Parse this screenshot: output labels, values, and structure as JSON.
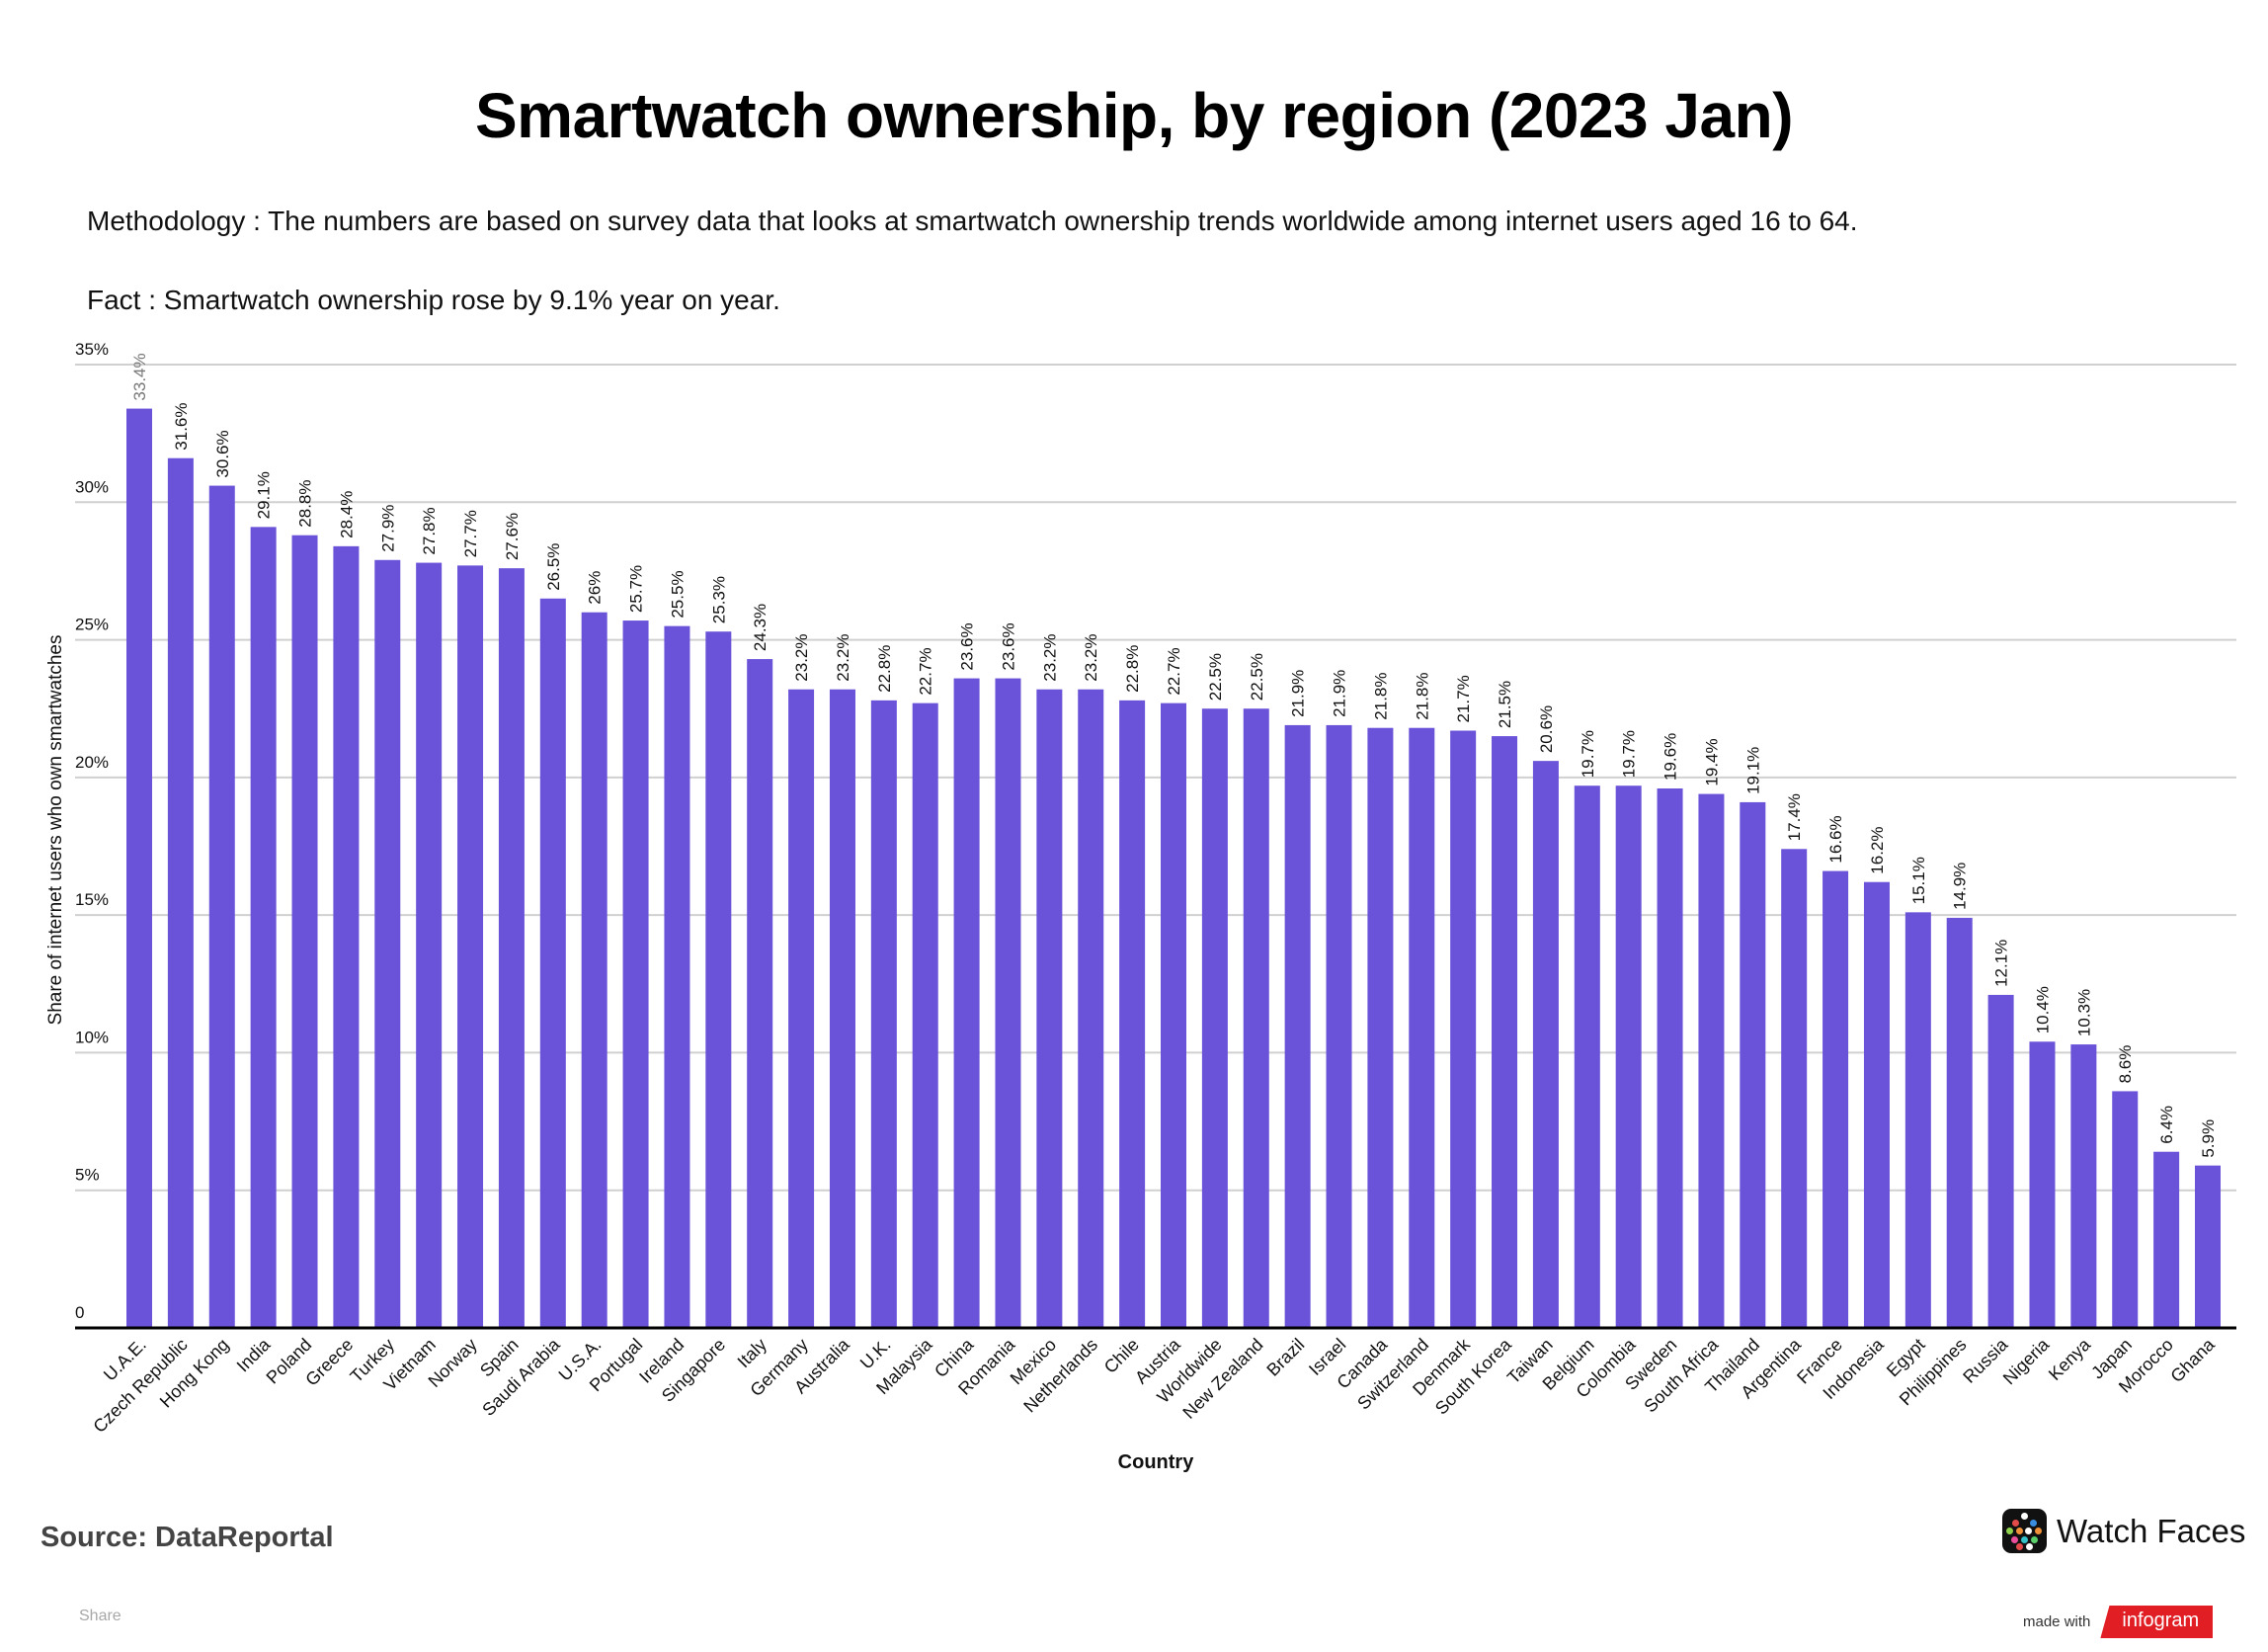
{
  "header": {
    "title": "Smartwatch ownership, by region (2023 Jan)",
    "methodology": "Methodology : The numbers are based on survey data that looks at smartwatch ownership trends worldwide among internet users aged 16 to 64.",
    "fact": "Fact : Smartwatch ownership rose by 9.1% year on year."
  },
  "footer": {
    "source": "Source: DataReportal",
    "share": "Share",
    "brand_name": "Watch Faces",
    "brand_icon": "watch-faces-app-icon",
    "made_with": "made with",
    "infogram": "infogram"
  },
  "colors": {
    "bar": "#6a52d9",
    "gridline": "#d0d0d0",
    "axis": "#000000",
    "infogram_red": "#e01e24"
  },
  "chart_data": {
    "type": "bar",
    "title": "Smartwatch ownership, by region (2023 Jan)",
    "xlabel": "Country",
    "ylabel": "Share of internet users who own smartwatches",
    "ylim": [
      0,
      35
    ],
    "yticks": [
      0,
      5,
      10,
      15,
      20,
      25,
      30,
      35
    ],
    "ytick_labels": [
      "0",
      "5%",
      "10%",
      "15%",
      "20%",
      "25%",
      "30%",
      "35%"
    ],
    "grid": true,
    "legend": "none",
    "value_suffix": "%",
    "categories": [
      "U.A.E.",
      "Czech Republic",
      "Hong Kong",
      "India",
      "Poland",
      "Greece",
      "Turkey",
      "Vietnam",
      "Norway",
      "Spain",
      "Saudi Arabia",
      "U.S.A.",
      "Portugal",
      "Ireland",
      "Singapore",
      "Italy",
      "Germany",
      "Australia",
      "U.K.",
      "Malaysia",
      "China",
      "Romania",
      "Mexico",
      "Netherlands",
      "Chile",
      "Austria",
      "Worldwide",
      "New Zealand",
      "Brazil",
      "Israel",
      "Canada",
      "Switzerland",
      "Denmark",
      "South Korea",
      "Taiwan",
      "Belgium",
      "Colombia",
      "Sweden",
      "South Africa",
      "Thailand",
      "Argentina",
      "France",
      "Indonesia",
      "Egypt",
      "Philippines",
      "Russia",
      "Nigeria",
      "Kenya",
      "Japan",
      "Morocco",
      "Ghana"
    ],
    "values": [
      33.4,
      31.6,
      30.6,
      29.1,
      28.8,
      28.4,
      27.9,
      27.8,
      27.7,
      27.6,
      26.5,
      26,
      25.7,
      25.5,
      25.3,
      24.3,
      23.2,
      23.2,
      22.8,
      22.7,
      23.6,
      23.6,
      23.2,
      23.2,
      22.8,
      22.7,
      22.5,
      22.5,
      21.9,
      21.9,
      21.8,
      21.8,
      21.7,
      21.5,
      20.6,
      19.7,
      19.7,
      19.6,
      19.4,
      19.1,
      17.4,
      16.6,
      16.2,
      15.1,
      14.9,
      12.1,
      10.4,
      10.3,
      8.6,
      6.4,
      5.9
    ],
    "data_labels": [
      "33.4%",
      "31.6%",
      "30.6%",
      "29.1%",
      "28.8%",
      "28.4%",
      "27.9%",
      "27.8%",
      "27.7%",
      "27.6%",
      "26.5%",
      "26%",
      "25.7%",
      "25.5%",
      "25.3%",
      "24.3%",
      "23.2%",
      "23.2%",
      "22.8%",
      "22.7%",
      "23.6%",
      "23.6%",
      "23.2%",
      "23.2%",
      "22.8%",
      "22.7%",
      "22.5%",
      "22.5%",
      "21.9%",
      "21.9%",
      "21.8%",
      "21.8%",
      "21.7%",
      "21.5%",
      "20.6%",
      "19.7%",
      "19.7%",
      "19.6%",
      "19.4%",
      "19.1%",
      "17.4%",
      "16.6%",
      "16.2%",
      "15.1%",
      "14.9%",
      "12.1%",
      "10.4%",
      "10.3%",
      "8.6%",
      "6.4%",
      "5.9%"
    ]
  }
}
